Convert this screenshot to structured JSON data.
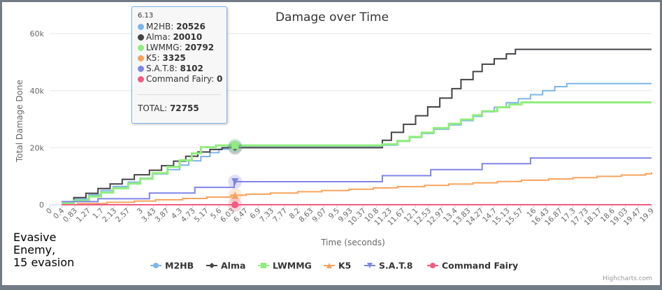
{
  "chart_data": {
    "type": "line",
    "step": true,
    "title": "Damage over Time",
    "xlabel": "Time (seconds)",
    "ylabel": "Total Damage Done",
    "ylim": [
      0,
      62000
    ],
    "xlim": [
      0,
      19.9
    ],
    "y_ticks": [
      "0",
      "20k",
      "40k",
      "60k"
    ],
    "y_tick_values": [
      0,
      20000,
      40000,
      60000
    ],
    "x_ticks": [
      "0",
      "0.4",
      "0.83",
      "1.27",
      "1.7",
      "2.13",
      "2.57",
      "3",
      "3.43",
      "3.87",
      "4.3",
      "4.73",
      "5.17",
      "5.6",
      "6.03",
      "6.47",
      "6.9",
      "7.33",
      "7.77",
      "8.2",
      "8.63",
      "9.07",
      "9.5",
      "9.93",
      "10.37",
      "10.8",
      "11.23",
      "11.67",
      "12.1",
      "12.53",
      "12.97",
      "13.4",
      "13.83",
      "14.27",
      "14.7",
      "15.13",
      "15.57",
      "16",
      "16.43",
      "16.87",
      "17.3",
      "17.73",
      "18.17",
      "18.6",
      "19.03",
      "19.47",
      "19.9"
    ],
    "grid": true,
    "legend_position": "bottom",
    "series": [
      {
        "name": "M2HB",
        "color": "#7cb5ec",
        "marker": "circle",
        "points": [
          [
            0.4,
            800
          ],
          [
            0.8,
            2000
          ],
          [
            1.3,
            3500
          ],
          [
            1.7,
            5000
          ],
          [
            2.1,
            6400
          ],
          [
            2.6,
            7900
          ],
          [
            3.0,
            9300
          ],
          [
            3.4,
            10800
          ],
          [
            3.9,
            12300
          ],
          [
            4.3,
            13900
          ],
          [
            4.6,
            15400
          ],
          [
            5.0,
            16900
          ],
          [
            5.3,
            18300
          ],
          [
            5.6,
            19500
          ],
          [
            5.9,
            20526
          ],
          [
            10.8,
            20526
          ],
          [
            11.0,
            20900
          ],
          [
            11.5,
            22200
          ],
          [
            11.9,
            23600
          ],
          [
            12.3,
            25000
          ],
          [
            12.7,
            26500
          ],
          [
            13.2,
            28000
          ],
          [
            13.6,
            29500
          ],
          [
            14.0,
            31000
          ],
          [
            14.3,
            32600
          ],
          [
            14.7,
            34200
          ],
          [
            15.1,
            35800
          ],
          [
            15.5,
            37200
          ],
          [
            15.9,
            38600
          ],
          [
            16.3,
            40000
          ],
          [
            16.7,
            41400
          ],
          [
            17.1,
            42500
          ],
          [
            19.9,
            42500
          ]
        ]
      },
      {
        "name": "Alma",
        "color": "#434348",
        "marker": "diamond",
        "points": [
          [
            0.4,
            1000
          ],
          [
            0.8,
            2500
          ],
          [
            1.2,
            4000
          ],
          [
            1.6,
            5700
          ],
          [
            2.0,
            7300
          ],
          [
            2.4,
            8900
          ],
          [
            2.8,
            10500
          ],
          [
            3.3,
            12100
          ],
          [
            3.7,
            13700
          ],
          [
            4.1,
            15300
          ],
          [
            4.5,
            17000
          ],
          [
            4.9,
            18500
          ],
          [
            5.3,
            19400
          ],
          [
            5.7,
            20010
          ],
          [
            10.8,
            20010
          ],
          [
            11.0,
            22600
          ],
          [
            11.3,
            25400
          ],
          [
            11.7,
            28200
          ],
          [
            12.1,
            31200
          ],
          [
            12.5,
            34300
          ],
          [
            12.9,
            37400
          ],
          [
            13.3,
            40700
          ],
          [
            13.6,
            43900
          ],
          [
            14.0,
            46700
          ],
          [
            14.3,
            49300
          ],
          [
            14.7,
            51200
          ],
          [
            15.1,
            52900
          ],
          [
            15.4,
            54500
          ],
          [
            19.9,
            54500
          ]
        ]
      },
      {
        "name": "LWMMG",
        "color": "#90ed7d",
        "marker": "square",
        "points": [
          [
            0.4,
            500
          ],
          [
            0.8,
            1500
          ],
          [
            1.3,
            2900
          ],
          [
            1.7,
            4300
          ],
          [
            2.1,
            5800
          ],
          [
            2.6,
            7400
          ],
          [
            3.0,
            9100
          ],
          [
            3.4,
            11100
          ],
          [
            3.9,
            13300
          ],
          [
            4.3,
            15600
          ],
          [
            4.7,
            18000
          ],
          [
            5.0,
            20200
          ],
          [
            5.5,
            20792
          ],
          [
            10.8,
            20792
          ],
          [
            11.0,
            21200
          ],
          [
            11.5,
            22400
          ],
          [
            11.9,
            23800
          ],
          [
            12.3,
            25300
          ],
          [
            12.7,
            26900
          ],
          [
            13.2,
            28400
          ],
          [
            13.6,
            29900
          ],
          [
            14.0,
            31400
          ],
          [
            14.3,
            32800
          ],
          [
            14.8,
            34200
          ],
          [
            15.2,
            35200
          ],
          [
            15.6,
            35900
          ],
          [
            19.9,
            35900
          ]
        ]
      },
      {
        "name": "K5",
        "color": "#f7a35c",
        "marker": "triangle",
        "points": [
          [
            0.9,
            400
          ],
          [
            1.9,
            850
          ],
          [
            2.8,
            1300
          ],
          [
            3.5,
            1750
          ],
          [
            4.4,
            2200
          ],
          [
            5.2,
            2650
          ],
          [
            6.0,
            3325
          ],
          [
            6.5,
            3700
          ],
          [
            7.3,
            4100
          ],
          [
            8.2,
            4550
          ],
          [
            9.0,
            5000
          ],
          [
            9.9,
            5450
          ],
          [
            10.7,
            5900
          ],
          [
            11.5,
            6350
          ],
          [
            12.4,
            6800
          ],
          [
            13.2,
            7250
          ],
          [
            14.0,
            7700
          ],
          [
            14.8,
            8150
          ],
          [
            15.6,
            8600
          ],
          [
            16.5,
            9050
          ],
          [
            17.3,
            9500
          ],
          [
            18.1,
            9950
          ],
          [
            18.9,
            10400
          ],
          [
            19.7,
            10850
          ],
          [
            19.9,
            11400
          ]
        ]
      },
      {
        "name": "S.A.T.8",
        "color": "#8085e9",
        "marker": "triangle-down",
        "points": [
          [
            0.4,
            1100
          ],
          [
            1.6,
            2100
          ],
          [
            3.3,
            4100
          ],
          [
            4.8,
            6100
          ],
          [
            6.1,
            8102
          ],
          [
            10.8,
            8102
          ],
          [
            11.0,
            10200
          ],
          [
            12.6,
            12300
          ],
          [
            14.3,
            14400
          ],
          [
            15.9,
            16400
          ],
          [
            19.9,
            16400
          ]
        ]
      },
      {
        "name": "Command Fairy",
        "color": "#f15c80",
        "marker": "circle",
        "points": [
          [
            0.4,
            0
          ],
          [
            19.9,
            0
          ]
        ]
      }
    ]
  },
  "tooltip": {
    "x": "6.13",
    "rows": [
      {
        "name": "M2HB",
        "value": "20526",
        "color": "#7cb5ec"
      },
      {
        "name": "Alma",
        "value": "20010",
        "color": "#434348"
      },
      {
        "name": "LWMMG",
        "value": "20792",
        "color": "#90ed7d"
      },
      {
        "name": "K5",
        "value": "3325",
        "color": "#f7a35c"
      },
      {
        "name": "S.A.T.8",
        "value": "8102",
        "color": "#8085e9"
      },
      {
        "name": "Command Fairy",
        "value": "0",
        "color": "#f15c80"
      }
    ],
    "total_label": "TOTAL:",
    "total_value": "72755"
  },
  "note": "Evasive\nEnemy,\n15 evasion",
  "credits": "Highcharts.com"
}
